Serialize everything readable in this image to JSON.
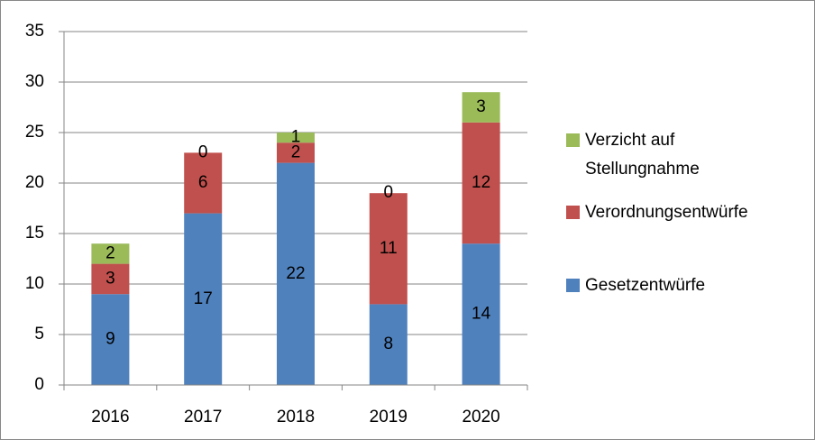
{
  "chart_data": {
    "type": "bar",
    "categories": [
      "2016",
      "2017",
      "2018",
      "2019",
      "2020"
    ],
    "series": [
      {
        "name": "Gesetzentwürfe",
        "color": "#4f81bd",
        "values": [
          9,
          17,
          22,
          8,
          14
        ]
      },
      {
        "name": "Verordnungsentwürfe",
        "color": "#c0504d",
        "values": [
          3,
          6,
          2,
          11,
          12
        ]
      },
      {
        "name": "Verzicht auf Stellungnahme",
        "color": "#9bbb59",
        "values": [
          2,
          0,
          1,
          0,
          3
        ]
      }
    ],
    "stacked": true,
    "ylim": [
      0,
      35
    ],
    "yticks": [
      0,
      5,
      10,
      15,
      20,
      25,
      30,
      35
    ],
    "grid": true,
    "legend": "right"
  }
}
